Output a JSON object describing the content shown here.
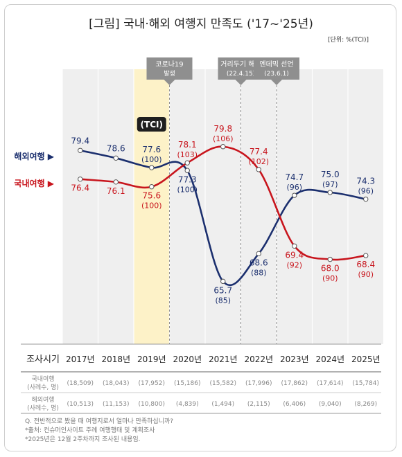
{
  "title": "[그림] 국내·해외 여행지 만족도 ('17~'25년)",
  "unit": "[단위: %(TCI)]",
  "notes": [
    "Q. 전반적으로 봤을 때 여행지로서 얼마나 만족하십니까?",
    "*출처: 컨슈머인사이트 주례 여행행태 및 계획조사",
    "*2025년은 12월 2주차까지 조사된 내용임."
  ],
  "chart_data": {
    "type": "line",
    "x": [
      "2017년",
      "2018년",
      "2019년",
      "2020년",
      "2021년",
      "2022년",
      "2023년",
      "2024년",
      "2025년"
    ],
    "ylim": [
      60,
      85
    ],
    "highlight_category": "2019년",
    "highlight_label": "(TCI)",
    "series": [
      {
        "name": "해외여행",
        "color": "#1b2f6e",
        "values": [
          79.4,
          78.6,
          77.6,
          77.3,
          65.7,
          68.6,
          74.7,
          75.0,
          74.3
        ],
        "tci": [
          "",
          "",
          "(100)",
          "(100)",
          "(85)",
          "(88)",
          "(96)",
          "(97)",
          "(96)"
        ]
      },
      {
        "name": "국내여행",
        "color": "#c8151d",
        "values": [
          76.4,
          76.1,
          75.6,
          78.1,
          79.8,
          77.4,
          69.4,
          68.0,
          68.4
        ],
        "tci": [
          "",
          "",
          "(100)",
          "(103)",
          "(106)",
          "(102)",
          "(92)",
          "(90)",
          "(90)"
        ]
      }
    ],
    "events": [
      {
        "text": [
          "코로나19",
          "발생"
        ],
        "after": "2019년"
      },
      {
        "text": [
          "거리두기 해제",
          "(22.4.15)"
        ],
        "after": "2021년"
      },
      {
        "text": [
          "엔데믹 선언",
          "(23.6.1)"
        ],
        "after": "2022년"
      }
    ],
    "table": {
      "header_label": "조사시기",
      "rows": [
        {
          "label": [
            "국내여행",
            "(사례수, 명)"
          ],
          "values": [
            "(18,509)",
            "(18,043)",
            "(17,952)",
            "(15,186)",
            "(15,582)",
            "(17,996)",
            "(17,862)",
            "(17,614)",
            "(15,784)"
          ]
        },
        {
          "label": [
            "해외여행",
            "(사례수, 명)"
          ],
          "values": [
            "(10,513)",
            "(11,153)",
            "(10,800)",
            "(4,839)",
            "(1,494)",
            "(2,115)",
            "(6,406)",
            "(9,040)",
            "(8,269)"
          ]
        }
      ]
    }
  }
}
